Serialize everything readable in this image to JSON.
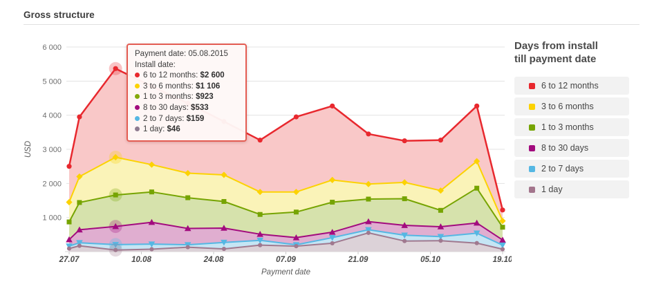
{
  "page": {
    "title": "Gross structure"
  },
  "legend": {
    "title_lines": [
      "Days from install",
      "till payment date"
    ],
    "items": [
      {
        "label": "6 to 12 months",
        "color": "#e8282e"
      },
      {
        "label": "3 to 6 months",
        "color": "#fcd202"
      },
      {
        "label": "1 to 3 months",
        "color": "#76a402"
      },
      {
        "label": "8 to 30 days",
        "color": "#a20b7e"
      },
      {
        "label": "2 to 7 days",
        "color": "#55b7e3"
      },
      {
        "label": "1 day",
        "color": "#a3758c"
      }
    ]
  },
  "tooltip": {
    "title": "Payment date: 05.08.2015",
    "subtitle": "Install date:",
    "rows": [
      {
        "label": "6 to 12 months:",
        "value": "$2 600",
        "color": "#e8282e"
      },
      {
        "label": "3 to 6 months:",
        "value": "$1 106",
        "color": "#fcd202"
      },
      {
        "label": "1 to 3 months:",
        "value": "$923",
        "color": "#84a80b"
      },
      {
        "label": "8 to 30 days:",
        "value": "$533",
        "color": "#a20b7e"
      },
      {
        "label": "2 to 7 days:",
        "value": "$159",
        "color": "#55b7e3"
      },
      {
        "label": "1 day:",
        "value": "$46",
        "color": "#8e7b90"
      }
    ]
  },
  "chart_data": {
    "type": "area",
    "stacked": true,
    "title": "Gross structure",
    "xlabel": "Payment date",
    "ylabel": "USD",
    "ylim": [
      0,
      6200
    ],
    "grid": true,
    "legend_position": "right",
    "y_ticks": [
      {
        "value": 1000,
        "label": "1 000"
      },
      {
        "value": 2000,
        "label": "2 000"
      },
      {
        "value": 3000,
        "label": "3 000"
      },
      {
        "value": 4000,
        "label": "4 000"
      },
      {
        "value": 5000,
        "label": "5 000"
      },
      {
        "value": 6000,
        "label": "6 000"
      }
    ],
    "x_tick_labels": [
      "27.07",
      "10.08",
      "24.08",
      "07.09",
      "21.09",
      "05.10",
      "19.10"
    ],
    "x_tick_day_offsets": [
      0,
      14,
      28,
      42,
      56,
      70,
      84
    ],
    "x_dates": [
      "27.07",
      "29.07",
      "05.08",
      "12.08",
      "19.08",
      "26.08",
      "02.09",
      "09.09",
      "16.09",
      "23.09",
      "30.09",
      "07.10",
      "14.10",
      "19.10"
    ],
    "x_day_offsets": [
      0,
      2,
      9,
      16,
      23,
      30,
      37,
      44,
      51,
      58,
      65,
      72,
      79,
      84
    ],
    "selected_index": 2,
    "selected_payment_date": "05.08.2015",
    "series": [
      {
        "name": "6 to 12 months",
        "color": "#e8282e",
        "fill": "#f9c8c8",
        "marker": "circle",
        "values": [
          1050,
          1750,
          2600,
          2300,
          2050,
          1565,
          1520,
          2200,
          2170,
          1470,
          1220,
          1480,
          1620,
          320
        ]
      },
      {
        "name": "3 to 6 months",
        "color": "#fcd202",
        "fill": "#faf3b8",
        "marker": "diamond",
        "values": [
          580,
          760,
          1106,
          800,
          720,
          780,
          660,
          590,
          650,
          440,
          480,
          580,
          790,
          185
        ]
      },
      {
        "name": "1 to 3 months",
        "color": "#76a402",
        "fill": "#d6e2ac",
        "marker": "square",
        "values": [
          520,
          800,
          923,
          890,
          900,
          780,
          580,
          750,
          880,
          660,
          780,
          480,
          1020,
          375
        ]
      },
      {
        "name": "8 to 30 days",
        "color": "#a20b7e",
        "fill": "#e0aed0",
        "marker": "triangle-up",
        "values": [
          190,
          380,
          533,
          640,
          480,
          420,
          180,
          210,
          160,
          240,
          290,
          290,
          300,
          150
        ]
      },
      {
        "name": "2 to 7 days",
        "color": "#55b7e3",
        "fill": "#c5e5f4",
        "marker": "triangle-down",
        "values": [
          70,
          90,
          159,
          150,
          70,
          190,
          140,
          40,
          165,
          90,
          170,
          120,
          290,
          120
        ]
      },
      {
        "name": "1 day",
        "color": "#a0798f",
        "fill": "#dcd2d8",
        "marker": "circle-small",
        "values": [
          90,
          170,
          46,
          70,
          130,
          80,
          190,
          160,
          245,
          550,
          310,
          320,
          250,
          70
        ]
      }
    ]
  }
}
